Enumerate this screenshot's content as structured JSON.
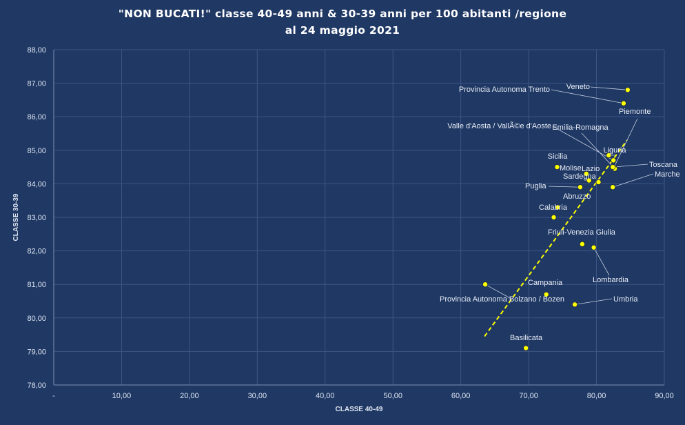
{
  "chart_data": {
    "type": "scatter",
    "title": "\"NON BUCATI!\" classe 40-49 anni & 30-39 anni per 100 abitanti /regione",
    "subtitle": "al 24 maggio 2021",
    "xlabel": "CLASSE 40-49",
    "ylabel": "CLASSE 30-39",
    "xlim": [
      0,
      90
    ],
    "ylim": [
      78,
      88
    ],
    "x_ticks": [
      "-",
      "10,00",
      "20,00",
      "30,00",
      "40,00",
      "50,00",
      "60,00",
      "70,00",
      "80,00",
      "90,00"
    ],
    "y_ticks": [
      "78,00",
      "79,00",
      "80,00",
      "81,00",
      "82,00",
      "83,00",
      "84,00",
      "85,00",
      "86,00",
      "87,00",
      "88,00"
    ],
    "grid": true,
    "trendline": {
      "type": "linear",
      "x_start": 63.5,
      "y_start": 79.45,
      "x_end": 84.5,
      "y_end": 85.3,
      "color": "#ffff00",
      "style": "dashed"
    },
    "marker_color": "#ffff00",
    "points": [
      {
        "name": "Veneto",
        "x": 84.6,
        "y": 86.8
      },
      {
        "name": "Provincia Autonoma Trento",
        "x": 84.0,
        "y": 86.4
      },
      {
        "name": "Piemonte",
        "x": 82.6,
        "y": 84.5
      },
      {
        "name": "Valle d'Aosta / VallÃ©e d'Aoste",
        "x": 82.5,
        "y": 84.7
      },
      {
        "name": "Emilia-Romagna",
        "x": 82.7,
        "y": 84.45
      },
      {
        "name": "Liguria",
        "x": 81.8,
        "y": 84.85
      },
      {
        "name": "Toscana",
        "x": 82.4,
        "y": 84.5
      },
      {
        "name": "Marche",
        "x": 82.4,
        "y": 83.9
      },
      {
        "name": "Sicilia",
        "x": 74.2,
        "y": 84.5
      },
      {
        "name": "Molise",
        "x": 78.5,
        "y": 84.3
      },
      {
        "name": "Lazio",
        "x": 78.9,
        "y": 84.1
      },
      {
        "name": "Sardegna",
        "x": 80.3,
        "y": 84.05
      },
      {
        "name": "Puglia",
        "x": 77.6,
        "y": 83.9
      },
      {
        "name": "Abruzzo",
        "x": 74.3,
        "y": 83.3
      },
      {
        "name": "Calabria",
        "x": 73.7,
        "y": 83.0
      },
      {
        "name": "Friuli-Venezia Giulia",
        "x": 77.9,
        "y": 82.2
      },
      {
        "name": "Lombardia",
        "x": 79.6,
        "y": 82.1
      },
      {
        "name": "Campania",
        "x": 72.6,
        "y": 80.7
      },
      {
        "name": "Umbria",
        "x": 76.8,
        "y": 80.4
      },
      {
        "name": "Provincia Autonoma Bolzano / Bozen",
        "x": 63.6,
        "y": 81.0
      },
      {
        "name": "Basilicata",
        "x": 69.6,
        "y": 79.1
      }
    ]
  }
}
